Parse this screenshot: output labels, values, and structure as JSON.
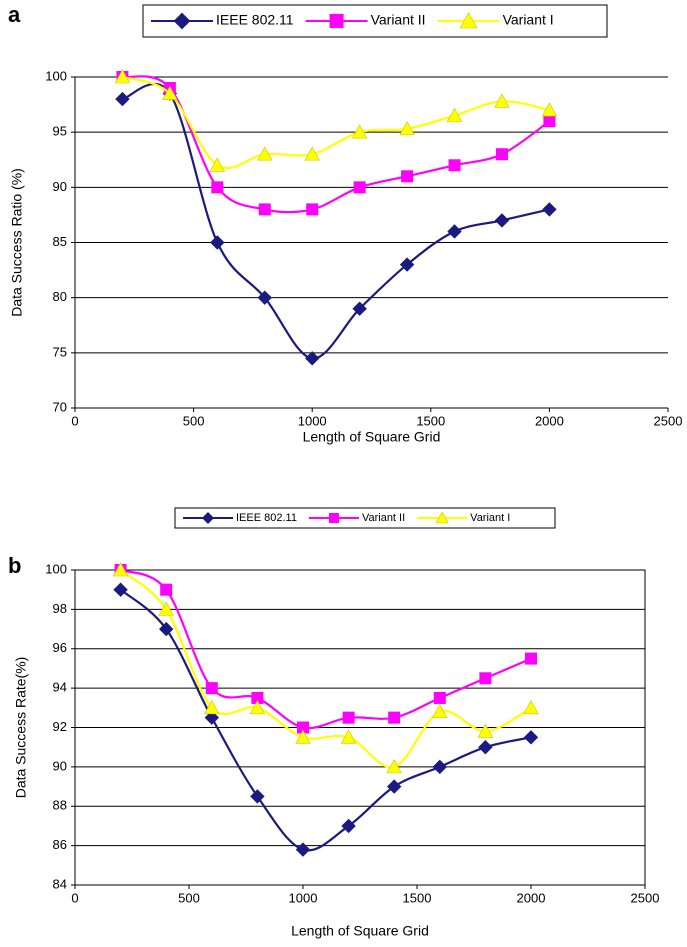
{
  "chart_data": [
    {
      "type": "line",
      "panel_label": "a",
      "x_label": "Length of Square Grid",
      "y_label": "Data Success Ratio (%)",
      "x": [
        200,
        400,
        600,
        800,
        1000,
        1200,
        1400,
        1600,
        1800,
        2000
      ],
      "series": [
        {
          "name": "IEEE 802.11",
          "color": "#1a1a80",
          "marker": "diamond",
          "values": [
            98,
            98.5,
            85,
            80,
            74.5,
            79,
            83,
            86,
            87,
            88
          ]
        },
        {
          "name": "Variant II",
          "color": "#ff00ff",
          "marker": "square",
          "values": [
            100,
            99,
            90,
            88,
            88,
            90,
            91,
            92,
            93,
            96
          ]
        },
        {
          "name": "Variant I",
          "color": "#ffff00",
          "marker": "triangle",
          "values": [
            100,
            98.5,
            92,
            93,
            93,
            95,
            95.3,
            96.5,
            97.8,
            97
          ]
        }
      ],
      "xlim": [
        0,
        2500
      ],
      "xticks": [
        0,
        500,
        1000,
        1500,
        2000,
        2500
      ],
      "ylim": [
        70,
        100
      ],
      "yticks": [
        70,
        75,
        80,
        85,
        90,
        95,
        100
      ],
      "grid": true,
      "frame": false,
      "legend": "top"
    },
    {
      "type": "line",
      "panel_label": "b",
      "x_label": "Length of Square Grid",
      "y_label": "Data Success Rate(%)",
      "x": [
        200,
        400,
        600,
        800,
        1000,
        1200,
        1400,
        1600,
        1800,
        2000
      ],
      "series": [
        {
          "name": "IEEE 802.11",
          "color": "#1a1a80",
          "marker": "diamond",
          "values": [
            99,
            97,
            92.5,
            88.5,
            85.8,
            87,
            89,
            90,
            91,
            91.5
          ]
        },
        {
          "name": "Variant II",
          "color": "#ff00ff",
          "marker": "square",
          "values": [
            100,
            99,
            94,
            93.5,
            92,
            92.5,
            92.5,
            93.5,
            94.5,
            95.5
          ]
        },
        {
          "name": "Variant I",
          "color": "#ffff00",
          "marker": "triangle",
          "values": [
            100,
            98,
            93,
            93,
            91.5,
            91.5,
            90,
            92.8,
            91.8,
            93
          ]
        }
      ],
      "xlim": [
        0,
        2500
      ],
      "xticks": [
        0,
        500,
        1000,
        1500,
        2000,
        2500
      ],
      "ylim": [
        84,
        100
      ],
      "yticks": [
        84,
        86,
        88,
        90,
        92,
        94,
        96,
        98,
        100
      ],
      "grid": true,
      "frame": true,
      "legend": "top"
    }
  ]
}
